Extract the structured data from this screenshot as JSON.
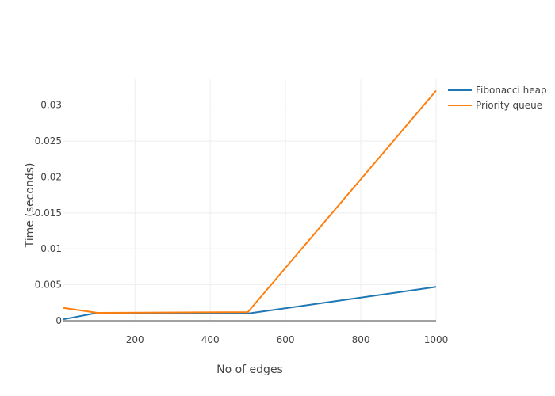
{
  "chart_data": {
    "type": "line",
    "title": "",
    "xlabel": "No of edges",
    "ylabel": "Time (seconds)",
    "xlim": [
      10,
      1000
    ],
    "ylim": [
      0,
      0.0336
    ],
    "x_ticks": [
      200,
      400,
      600,
      800,
      1000
    ],
    "y_ticks": [
      0,
      0.005,
      0.01,
      0.015,
      0.02,
      0.025,
      0.03
    ],
    "x_tick_labels": [
      "200",
      "400",
      "600",
      "800",
      "1000"
    ],
    "y_tick_labels": [
      "0",
      "0.005",
      "0.01",
      "0.015",
      "0.02",
      "0.025",
      "0.03"
    ],
    "grid": true,
    "legend_position": "top-right",
    "series": [
      {
        "name": "Fibonacci heap",
        "color": "#1f77b4",
        "x": [
          10,
          100,
          500,
          1000
        ],
        "y": [
          0.0002,
          0.0011,
          0.001,
          0.0047
        ]
      },
      {
        "name": "Priority queue",
        "color": "#ff7f0e",
        "x": [
          10,
          100,
          500,
          1000
        ],
        "y": [
          0.0018,
          0.0011,
          0.0012,
          0.032
        ]
      }
    ]
  }
}
